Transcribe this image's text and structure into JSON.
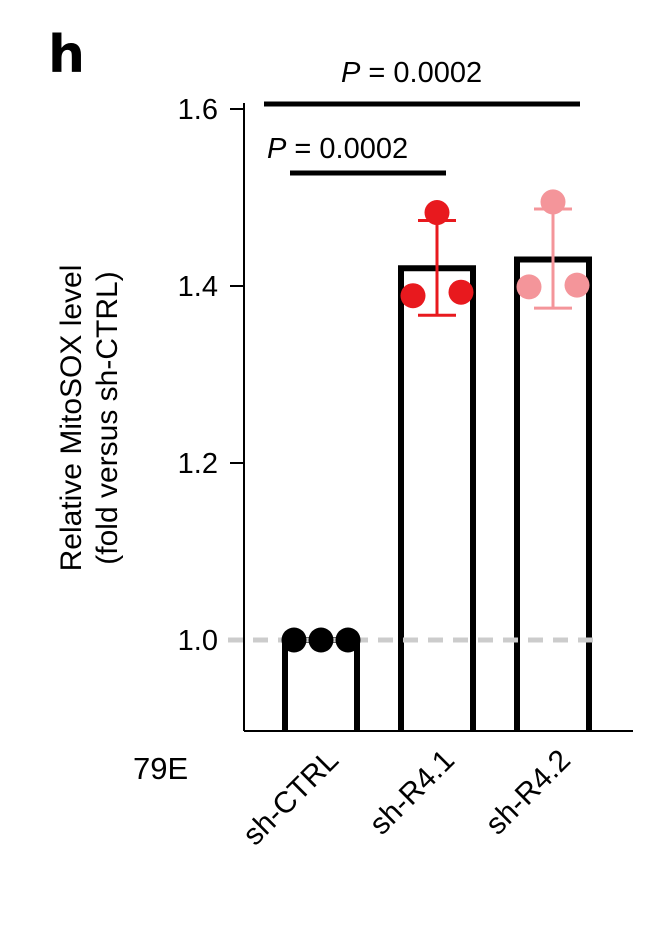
{
  "chart_data": {
    "type": "bar",
    "panel_label": "h",
    "cell_line_label": "79E",
    "categories": [
      "sh-CTRL",
      "sh-R4.1",
      "sh-R4.2"
    ],
    "values": [
      1.0,
      1.42,
      1.43
    ],
    "error_bars": [
      {
        "lower": 1.0,
        "upper": 1.0
      },
      {
        "lower": 1.367,
        "upper": 1.474
      },
      {
        "lower": 1.375,
        "upper": 1.487
      }
    ],
    "points": [
      [
        1.0,
        1.0,
        1.0
      ],
      [
        1.483,
        1.389,
        1.393
      ],
      [
        1.495,
        1.399,
        1.401
      ]
    ],
    "point_colors": [
      "#000000",
      "#e8191e",
      "#f4959a"
    ],
    "ylabel_line1": "Relative MitoSOX level",
    "ylabel_line2": "(fold versus sh-CTRL)",
    "yticks": [
      "1.0",
      "1.2",
      "1.4",
      "1.6"
    ],
    "ytick_values": [
      1.0,
      1.2,
      1.4,
      1.6
    ],
    "ylim": [
      0.9,
      1.6
    ],
    "reference_line": 1.0,
    "reference_color": "#cccccc",
    "comparisons": [
      {
        "from": "sh-CTRL",
        "to": "sh-R4.1",
        "p_symbol": "P",
        "p_text": " = 0.0002"
      },
      {
        "from": "sh-CTRL",
        "to": "sh-R4.2",
        "p_symbol": "P",
        "p_text": " = 0.0002"
      }
    ],
    "grid": false
  }
}
